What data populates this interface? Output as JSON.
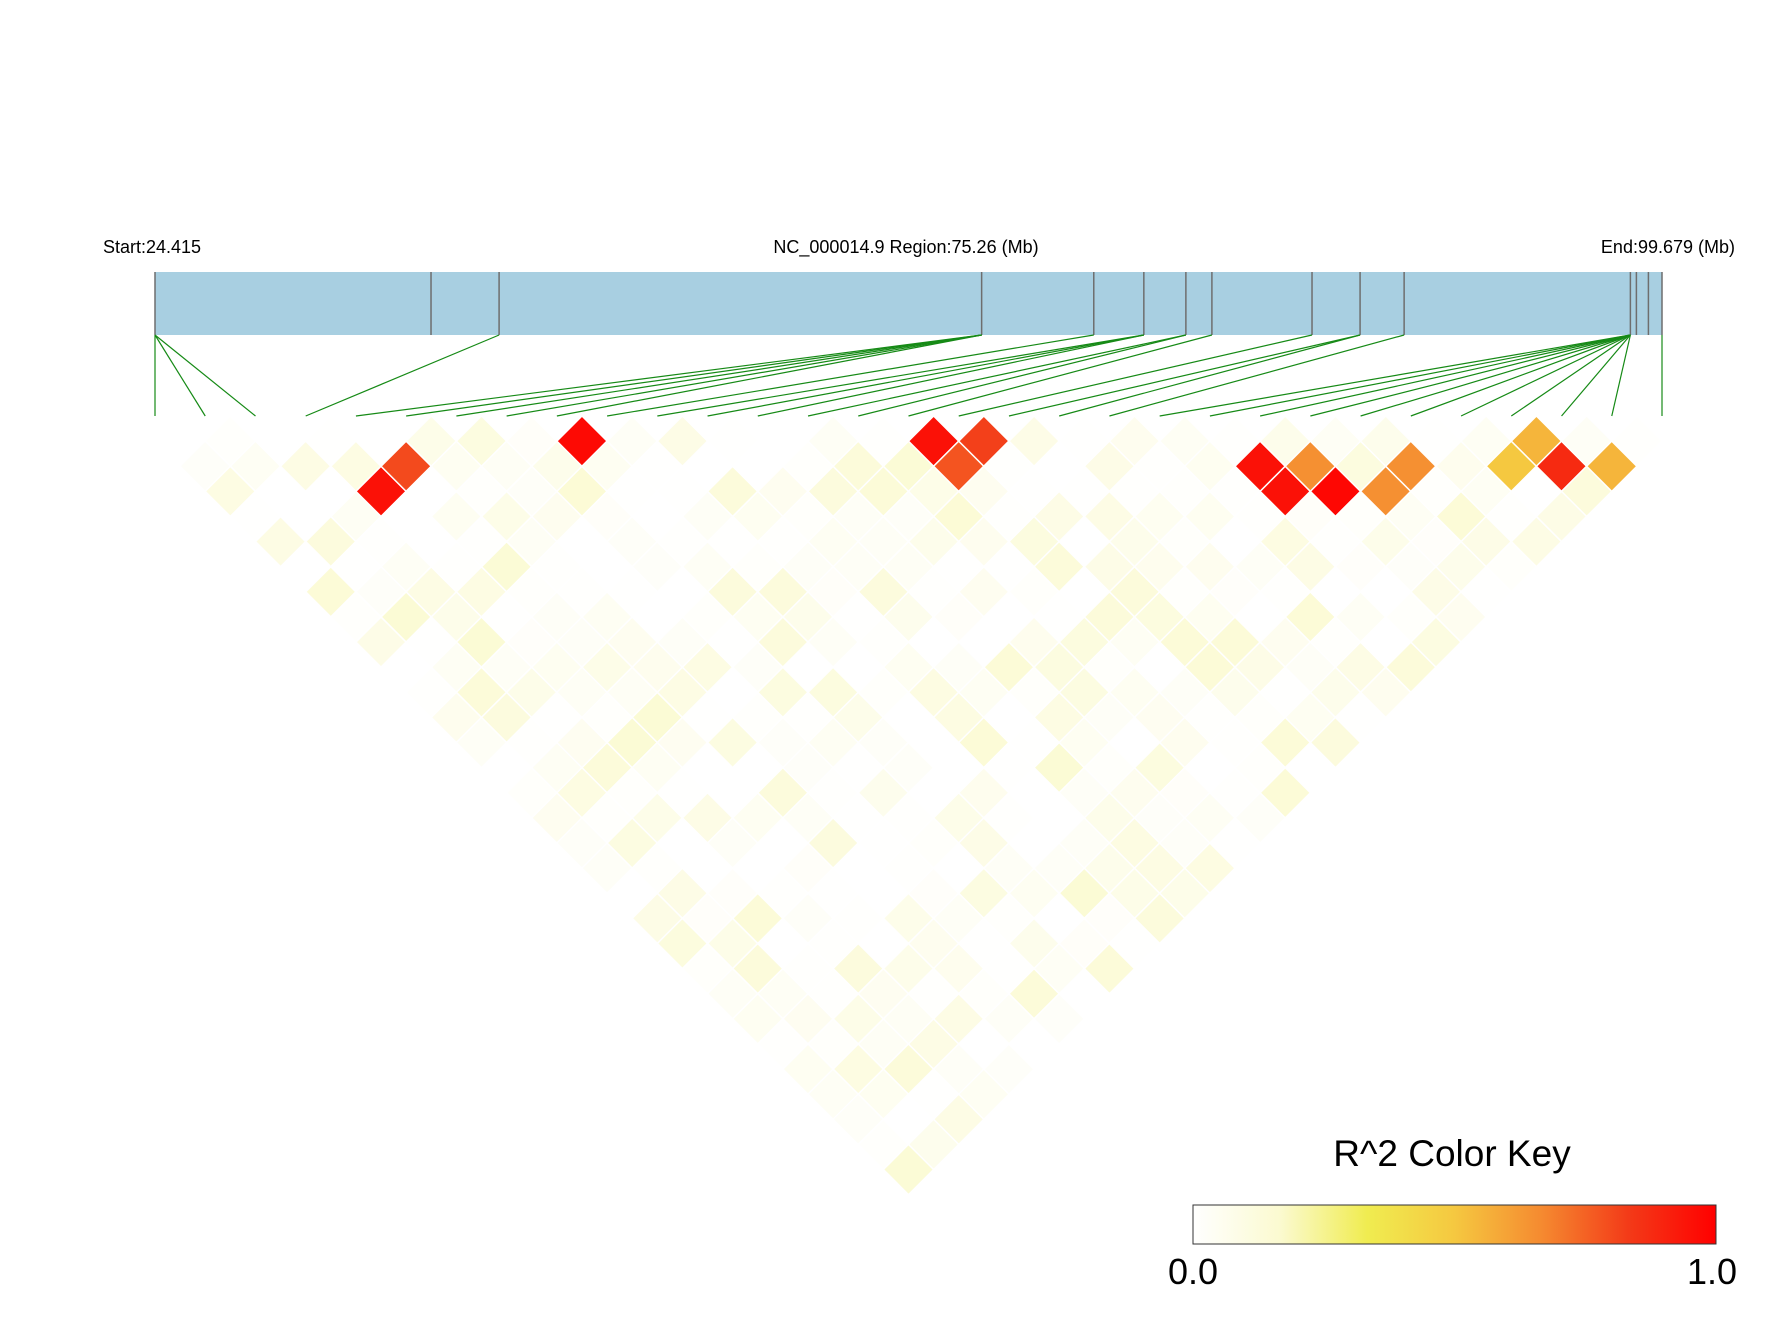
{
  "chart_data": {
    "type": "heatmap",
    "title": "",
    "region_label": "NC_000014.9 Region:75.26 (Mb)",
    "start_label": "Start:24.415",
    "end_label": "End:99.679 (Mb)",
    "region_start_mb": 24.415,
    "region_end_mb": 99.679,
    "snp_positions_mb": [
      24.415,
      38.2,
      41.6,
      65.7,
      71.3,
      73.8,
      75.9,
      77.2,
      82.2,
      84.6,
      86.8,
      98.1,
      98.4,
      99.0,
      99.679
    ],
    "snp_count": 31,
    "map_x_anchors_mb": [
      24.415,
      24.415,
      24.415,
      41.6,
      65.7,
      65.7,
      65.7,
      65.7,
      65.7,
      71.3,
      73.8,
      73.8,
      73.8,
      75.9,
      75.9,
      77.2,
      82.2,
      84.6,
      84.6,
      86.8,
      98.1,
      98.1,
      98.1,
      98.1,
      98.1,
      98.1,
      98.1,
      98.1,
      98.1,
      98.1,
      99.679
    ],
    "ld_r2_highlights": [
      {
        "i": 3,
        "j": 6,
        "r2": 0.95
      },
      {
        "i": 4,
        "j": 6,
        "r2": 0.8
      },
      {
        "i": 8,
        "j": 9,
        "r2": 0.97
      },
      {
        "i": 15,
        "j": 16,
        "r2": 0.95
      },
      {
        "i": 16,
        "j": 17,
        "r2": 0.82
      },
      {
        "i": 15,
        "j": 17,
        "r2": 0.78
      },
      {
        "i": 21,
        "j": 23,
        "r2": 0.95
      },
      {
        "i": 21,
        "j": 24,
        "r2": 0.95
      },
      {
        "i": 22,
        "j": 24,
        "r2": 0.65
      },
      {
        "i": 22,
        "j": 25,
        "r2": 0.98
      },
      {
        "i": 23,
        "j": 26,
        "r2": 0.65
      },
      {
        "i": 24,
        "j": 26,
        "r2": 0.65
      },
      {
        "i": 27,
        "j": 28,
        "r2": 0.55
      },
      {
        "i": 26,
        "j": 28,
        "r2": 0.5
      },
      {
        "i": 27,
        "j": 29,
        "r2": 0.88
      },
      {
        "i": 28,
        "j": 30,
        "r2": 0.55
      }
    ],
    "ld_r2_background_max": 0.15,
    "color_key": {
      "title": "R^2 Color Key",
      "min_label": "0.0",
      "max_label": "1.0",
      "colors": [
        "#ffffff",
        "#fbfad0",
        "#f0ec50",
        "#f5c840",
        "#f58a30",
        "#f33a18",
        "#ff0000"
      ]
    },
    "colors": {
      "chromosome_bar": "#a8cfe1",
      "snp_marker": "#6e6e6e",
      "map_line": "#168a16"
    }
  }
}
